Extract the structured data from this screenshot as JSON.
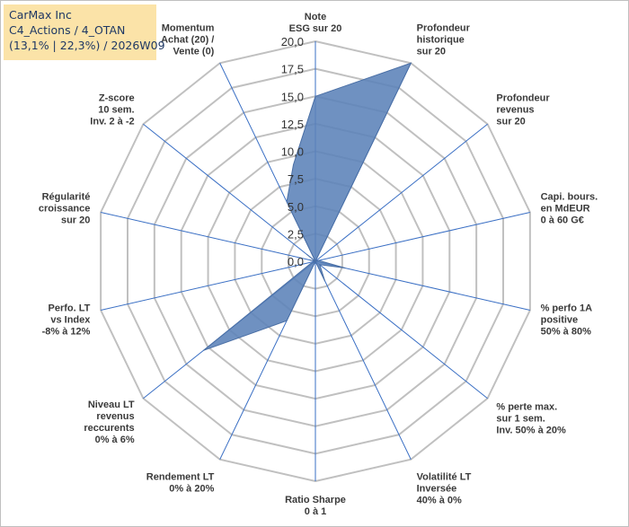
{
  "info_box": {
    "line1": "CarMax Inc",
    "line2": "C4_Actions / 4_OTAN",
    "line3": "(13,1% | 22,3%) / 2026W09"
  },
  "chart_data": {
    "type": "radar",
    "r_range": [
      0,
      20
    ],
    "r_ticks": [
      "0,0",
      "2,5",
      "5,0",
      "7,5",
      "10,0",
      "12,5",
      "15,0",
      "17,5",
      "20,0"
    ],
    "grid": true,
    "axes": [
      {
        "label": [
          "Note",
          "ESG sur 20"
        ],
        "value": 15.0
      },
      {
        "label": [
          "Profondeur",
          "historique",
          "sur 20"
        ],
        "value": 20.0
      },
      {
        "label": [
          "Profondeur",
          "revenus",
          "sur 20"
        ],
        "value": 0.0
      },
      {
        "label": [
          "Capi. bours.",
          "en MdEUR",
          "0 à 60 G€"
        ],
        "value": 0.3
      },
      {
        "label": [
          "% perfo 1A",
          "positive",
          "50% à 80%"
        ],
        "value": 2.8
      },
      {
        "label": [
          "% perte max.",
          "sur 1 sem.",
          "Inv. 50% à 20%"
        ],
        "value": 0.5
      },
      {
        "label": [
          "Volatilité LT",
          "Inversée",
          "40% à 0%"
        ],
        "value": 2.0
      },
      {
        "label": [
          "Ratio Sharpe",
          "0 à 1"
        ],
        "value": 0.0
      },
      {
        "label": [
          "Rendement LT",
          "0% à 20%"
        ],
        "value": 6.0
      },
      {
        "label": [
          "Niveau LT",
          "revenus",
          "reccurents",
          "0% à 6%"
        ],
        "value": 13.0
      },
      {
        "label": [
          "Perfo. LT",
          "vs Index",
          "-8% à 12%"
        ],
        "value": 0.0
      },
      {
        "label": [
          "Régularité",
          "croissance",
          "sur 20"
        ],
        "value": 0.5
      },
      {
        "label": [
          "Z-score",
          "10 sem.",
          "Inv. 2 à -2"
        ],
        "value": 1.0
      },
      {
        "label": [
          "Momentum",
          "Achat (20) /",
          "Vente (0)"
        ],
        "value": 6.0
      }
    ],
    "extra_points": [
      {
        "between": [
          13,
          0
        ],
        "value": 9.0
      },
      {
        "between": [
          9,
          10
        ],
        "value": 0.5
      },
      {
        "between": [
          10,
          11
        ],
        "value": 0.0
      },
      {
        "between": [
          11,
          12
        ],
        "value": 0.0
      },
      {
        "between": [
          12,
          13
        ],
        "value": 0.0
      }
    ],
    "colors": {
      "fill": "#5b82b8",
      "stroke": "#4a6fa5",
      "spoke": "#3a6fc4",
      "grid": "#c0c0c0"
    }
  }
}
